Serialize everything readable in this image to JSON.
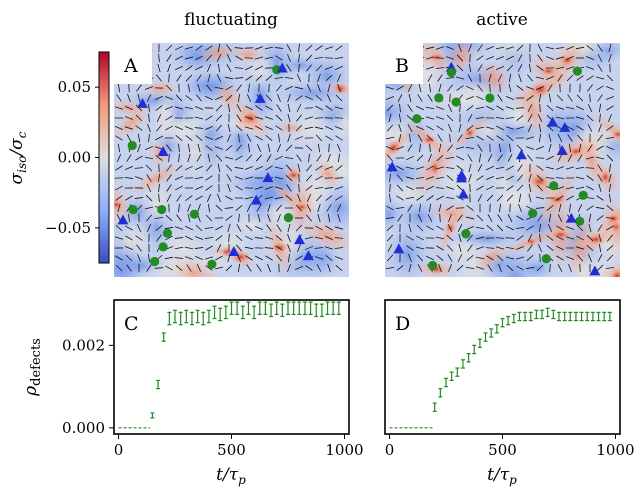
{
  "titles": {
    "left": "fluctuating",
    "right": "active"
  },
  "colorbar": {
    "label": "σ_iso/σ_c",
    "label_main": "σ",
    "label_sub": "iso",
    "label_slash": "/σ",
    "label_sub2": "c",
    "ticks": [
      0.05,
      0.0,
      -0.05
    ],
    "tick_labels": [
      "0.05",
      "0.00",
      "−0.05"
    ],
    "range": [
      -0.075,
      0.075
    ],
    "colors": {
      "low": "#3b4cc0",
      "mid": "#dddddd",
      "high": "#b40426"
    }
  },
  "panels": {
    "A": {
      "letter": "A",
      "title": "fluctuating"
    },
    "B": {
      "letter": "B",
      "title": "active"
    },
    "C": {
      "letter": "C"
    },
    "D": {
      "letter": "D"
    }
  },
  "defect_colors": {
    "plus_half": "#1f2fd6",
    "minus_half": "#228b22"
  },
  "chart_data": [
    {
      "type": "heatmap",
      "panel": "A",
      "title": "fluctuating",
      "colormap": "coolwarm",
      "value_range": [
        -0.075,
        0.075
      ],
      "overlay": "director field (short black line segments), +1/2 defects (blue triangles), -1/2 defects (green circles)"
    },
    {
      "type": "heatmap",
      "panel": "B",
      "title": "active",
      "colormap": "coolwarm",
      "value_range": [
        -0.075,
        0.075
      ],
      "overlay": "director field (short black line segments), +1/2 defects (blue triangles), -1/2 defects (green circles)"
    },
    {
      "type": "scatter",
      "panel": "C",
      "xlabel": "t/τ_p",
      "ylabel": "ρ_defects",
      "xlim": [
        -20,
        1020
      ],
      "ylim": [
        -0.00015,
        0.0031
      ],
      "xticks": [
        0,
        500,
        1000
      ],
      "xtick_labels": [
        "0",
        "500",
        "1000"
      ],
      "yticks": [
        0.0,
        0.002
      ],
      "ytick_labels": [
        "0.000",
        "0.002"
      ],
      "series": [
        {
          "color": "#228b22",
          "style": "error bars",
          "x": [
            150,
            175,
            200,
            225,
            250,
            275,
            300,
            325,
            350,
            375,
            400,
            425,
            450,
            475,
            500,
            525,
            550,
            575,
            600,
            625,
            650,
            675,
            700,
            725,
            750,
            775,
            800,
            825,
            850,
            875,
            900,
            925,
            950,
            975
          ],
          "y": [
            0.0003,
            0.00105,
            0.0022,
            0.00265,
            0.0027,
            0.00265,
            0.0027,
            0.00265,
            0.0027,
            0.00265,
            0.0027,
            0.0028,
            0.00275,
            0.0028,
            0.0029,
            0.0029,
            0.0028,
            0.0029,
            0.0028,
            0.0029,
            0.0029,
            0.00285,
            0.0029,
            0.00285,
            0.0029,
            0.0029,
            0.0029,
            0.0029,
            0.0029,
            0.00285,
            0.00285,
            0.0029,
            0.0029,
            0.0029
          ],
          "err": [
            6e-05,
            0.0001,
            0.0001,
            0.00015,
            0.00015,
            0.00015,
            0.00015,
            0.00015,
            0.00015,
            0.00015,
            0.00015,
            0.00015,
            0.00015,
            0.00015,
            0.00015,
            0.00015,
            0.00015,
            0.00015,
            0.00015,
            0.00015,
            0.00015,
            0.00015,
            0.00015,
            0.00015,
            0.00015,
            0.00015,
            0.00015,
            0.00015,
            0.00015,
            0.00015,
            0.00015,
            0.00015,
            0.00015,
            0.00015
          ]
        },
        {
          "color": "#228b22",
          "style": "dashed",
          "x": [
            0,
            140
          ],
          "y": [
            0.0,
            0.0
          ]
        }
      ]
    },
    {
      "type": "scatter",
      "panel": "D",
      "xlabel": "t/τ_p",
      "ylabel": "",
      "xlim": [
        -20,
        1020
      ],
      "ylim": [
        -0.00015,
        0.0031
      ],
      "xticks": [
        0,
        500,
        1000
      ],
      "xtick_labels": [
        "0",
        "500",
        "1000"
      ],
      "series": [
        {
          "color": "#228b22",
          "style": "error bars",
          "x": [
            200,
            225,
            250,
            275,
            300,
            325,
            350,
            375,
            400,
            425,
            450,
            475,
            500,
            525,
            550,
            575,
            600,
            625,
            650,
            675,
            700,
            725,
            750,
            775,
            800,
            825,
            850,
            875,
            900,
            925,
            950,
            975
          ],
          "y": [
            0.0005,
            0.00085,
            0.0011,
            0.00125,
            0.00135,
            0.00155,
            0.0017,
            0.0019,
            0.00205,
            0.0022,
            0.0023,
            0.0024,
            0.00255,
            0.0026,
            0.00265,
            0.0027,
            0.0027,
            0.0027,
            0.00275,
            0.00275,
            0.0028,
            0.00275,
            0.0027,
            0.0027,
            0.0027,
            0.0027,
            0.0027,
            0.0027,
            0.0027,
            0.0027,
            0.0027,
            0.0027
          ],
          "err": [
            0.0001,
            0.0001,
            0.0001,
            0.0001,
            0.0001,
            0.0001,
            0.0001,
            0.0001,
            0.0001,
            0.0001,
            0.0001,
            0.0001,
            0.0001,
            0.0001,
            0.0001,
            0.0001,
            0.0001,
            0.0001,
            0.0001,
            0.0001,
            0.0001,
            0.0001,
            0.0001,
            0.0001,
            0.0001,
            0.0001,
            0.0001,
            0.0001,
            0.0001,
            0.0001,
            0.0001,
            0.0001
          ]
        },
        {
          "color": "#228b22",
          "style": "dashed",
          "x": [
            0,
            190
          ],
          "y": [
            0.0,
            0.0
          ]
        }
      ]
    }
  ]
}
